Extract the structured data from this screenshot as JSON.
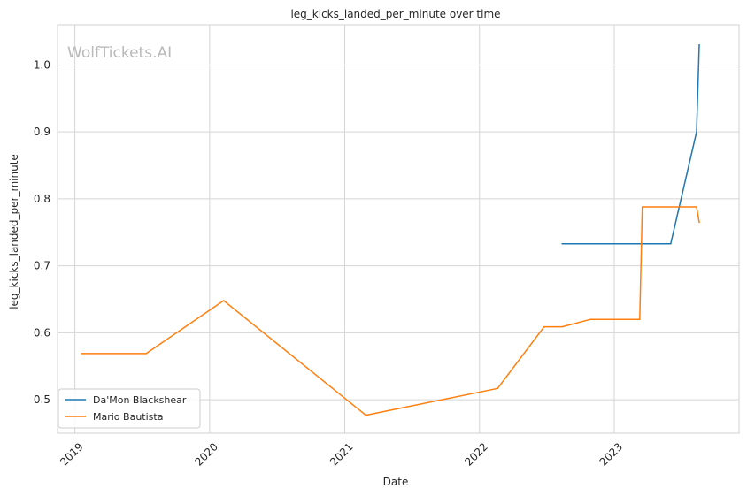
{
  "chart_data": {
    "type": "line",
    "title": "leg_kicks_landed_per_minute over time",
    "xlabel": "Date",
    "ylabel": "leg_kicks_landed_per_minute",
    "watermark": "WolfTickets.AI",
    "x_ticks": [
      "2019",
      "2020",
      "2021",
      "2022",
      "2023"
    ],
    "y_ticks": [
      "0.5",
      "0.6",
      "0.7",
      "0.8",
      "0.9",
      "1.0"
    ],
    "xlim": [
      "2018-11-15",
      "2023-12-05"
    ],
    "ylim": [
      0.45,
      1.06
    ],
    "grid": true,
    "legend_position": "lower-left",
    "series": [
      {
        "name": "Da'Mon Blackshear",
        "color": "#1f77b4",
        "points": [
          [
            "2022-08-13",
            0.733
          ],
          [
            "2023-06-03",
            0.733
          ],
          [
            "2023-08-12",
            0.9
          ],
          [
            "2023-08-19",
            1.03
          ]
        ]
      },
      {
        "name": "Mario Bautista",
        "color": "#ff7f0e",
        "points": [
          [
            "2019-01-19",
            0.569
          ],
          [
            "2019-07-13",
            0.569
          ],
          [
            "2020-02-08",
            0.648
          ],
          [
            "2021-02-27",
            0.477
          ],
          [
            "2022-02-19",
            0.517
          ],
          [
            "2022-06-25",
            0.609
          ],
          [
            "2022-08-13",
            0.609
          ],
          [
            "2022-10-29",
            0.62
          ],
          [
            "2023-03-11",
            0.62
          ],
          [
            "2023-03-18",
            0.788
          ],
          [
            "2023-08-12",
            0.788
          ],
          [
            "2023-08-19",
            0.765
          ]
        ]
      }
    ]
  }
}
